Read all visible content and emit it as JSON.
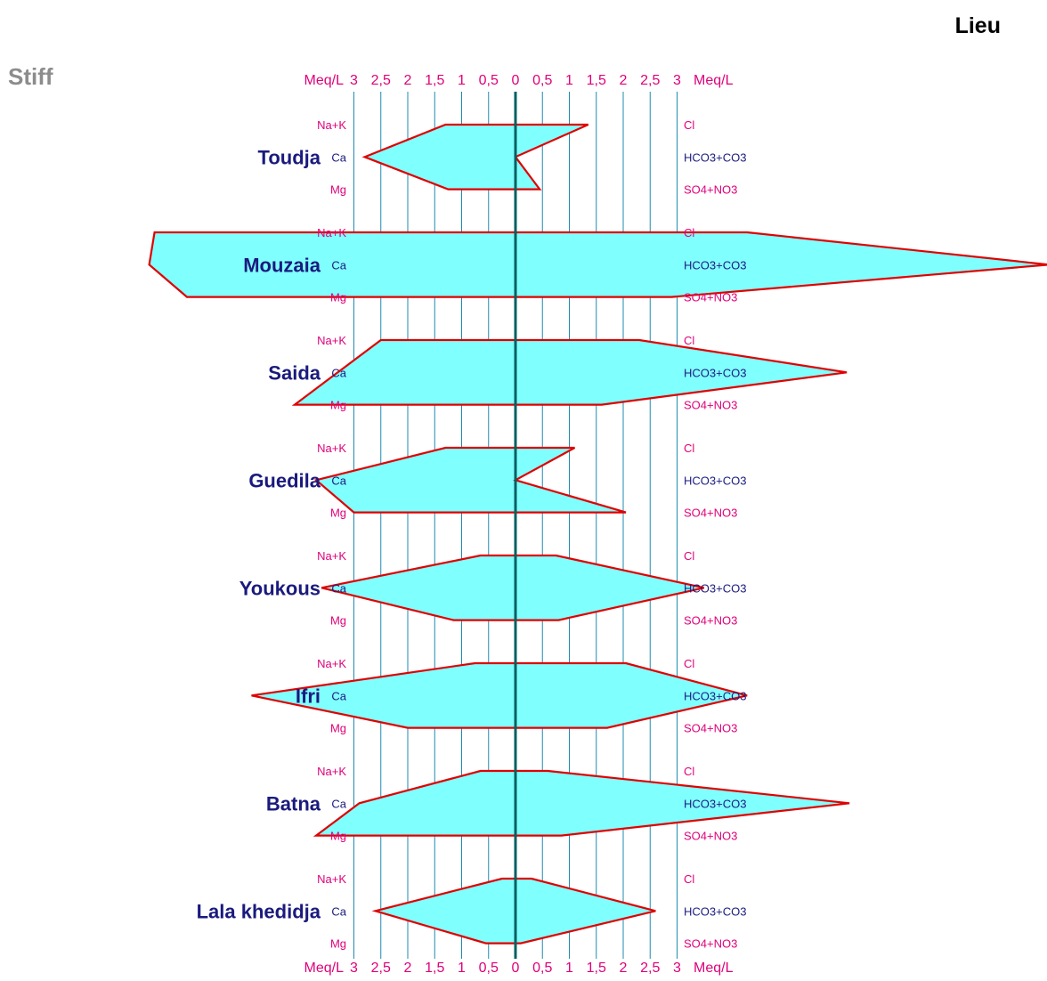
{
  "header": {
    "chart_title": "Stiff",
    "corner_label": "Lieu"
  },
  "colors": {
    "polygon_fill": "#80ffff",
    "polygon_stroke": "#e00000",
    "axis_text": "#e0007a",
    "site_label": "#1a1a7e",
    "grid_line": "#1f8bb0",
    "zero_line": "#006060",
    "title_gray": "#8c8c8c"
  },
  "chart_data": {
    "type": "stiff",
    "title": "Stiff",
    "unit_label": "Meq/L",
    "x_ticks": [
      "3",
      "2,5",
      "2",
      "1,5",
      "1",
      "0,5",
      "0",
      "0,5",
      "1",
      "1,5",
      "2",
      "2,5",
      "3"
    ],
    "cation_labels": [
      "Na+K",
      "Ca",
      "Mg"
    ],
    "anion_labels": [
      "Cl",
      "HCO3+CO3",
      "SO4+NO3"
    ],
    "xlim": [
      -3,
      3
    ],
    "samples": [
      {
        "name": "Toudja",
        "cations": {
          "Na+K": 1.3,
          "Ca": 2.8,
          "Mg": 1.25
        },
        "anions": {
          "Cl": 1.35,
          "HCO3+CO3": 0.0,
          "SO4+NO3": 0.45
        }
      },
      {
        "name": "Mouzaia",
        "cations": {
          "Na+K": 6.7,
          "Ca": 6.8,
          "Mg": 6.1
        },
        "anions": {
          "Cl": 4.3,
          "HCO3+CO3": 9.9,
          "SO4+NO3": 2.9
        }
      },
      {
        "name": "Saida",
        "cations": {
          "Na+K": 2.5,
          "Ca": 3.3,
          "Mg": 4.1
        },
        "anions": {
          "Cl": 2.3,
          "HCO3+CO3": 6.15,
          "SO4+NO3": 1.6
        }
      },
      {
        "name": "Guedila",
        "cations": {
          "Na+K": 1.3,
          "Ca": 3.7,
          "Mg": 3.0
        },
        "anions": {
          "Cl": 1.1,
          "HCO3+CO3": 0.0,
          "SO4+NO3": 2.05
        }
      },
      {
        "name": "Youkous",
        "cations": {
          "Na+K": 0.65,
          "Ca": 3.6,
          "Mg": 1.15
        },
        "anions": {
          "Cl": 0.75,
          "HCO3+CO3": 3.5,
          "SO4+NO3": 0.8
        }
      },
      {
        "name": "Ifri",
        "cations": {
          "Na+K": 0.75,
          "Ca": 4.9,
          "Mg": 2.0
        },
        "anions": {
          "Cl": 2.05,
          "HCO3+CO3": 4.3,
          "SO4+NO3": 1.7
        }
      },
      {
        "name": "Batna",
        "cations": {
          "Na+K": 0.65,
          "Ca": 2.9,
          "Mg": 3.7
        },
        "anions": {
          "Cl": 0.6,
          "HCO3+CO3": 6.2,
          "SO4+NO3": 0.85
        }
      },
      {
        "name": "Lala khedidja",
        "cations": {
          "Na+K": 0.25,
          "Ca": 2.6,
          "Mg": 0.55
        },
        "anions": {
          "Cl": 0.3,
          "HCO3+CO3": 2.6,
          "SO4+NO3": 0.1
        }
      }
    ]
  }
}
